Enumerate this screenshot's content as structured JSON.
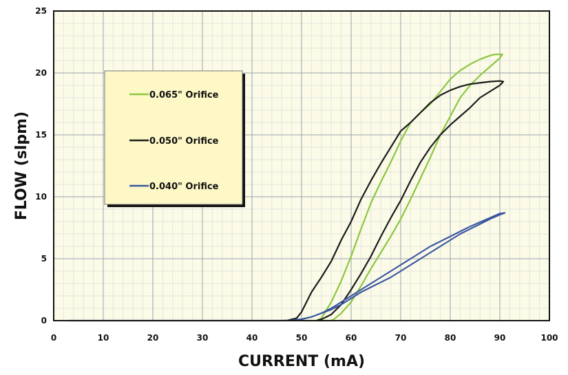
{
  "colors": {
    "plot_bg": "#fbfbe8",
    "minor_grid": "#e6e6de",
    "major_grid": "#9aa3ad",
    "legend_bg": "#fdf8c6",
    "legend_shadow": "#111111",
    "series_065": "#8cc63f",
    "series_050": "#1a1a1a",
    "series_040": "#3a56a0"
  },
  "chart_data": {
    "type": "line",
    "title": "",
    "xlabel": "CURRENT (mA)",
    "ylabel": "FLOW (slpm)",
    "xlim": [
      0,
      100
    ],
    "ylim": [
      0,
      25
    ],
    "xticks": [
      0,
      10,
      20,
      30,
      40,
      50,
      60,
      70,
      80,
      90,
      100
    ],
    "yticks": [
      0,
      5,
      10,
      15,
      20,
      25
    ],
    "grid": true,
    "legend_position": "top-left",
    "series": [
      {
        "name": "0.065\" Orifice",
        "color": "#8cc63f",
        "x": [
          50,
          53,
          54,
          56,
          58,
          60,
          62,
          64,
          66,
          68,
          70,
          72,
          74,
          76,
          78,
          80,
          82,
          84,
          86,
          88,
          89,
          90.5,
          90,
          88,
          86,
          84,
          82,
          80,
          78,
          76,
          74,
          72,
          70,
          68,
          66,
          64,
          62,
          60,
          58,
          56.5,
          56,
          52
        ],
        "y": [
          0,
          0,
          0.2,
          1.5,
          3.2,
          5.2,
          7.4,
          9.5,
          11.2,
          12.8,
          14.5,
          16.0,
          16.8,
          17.5,
          18.5,
          19.5,
          20.2,
          20.7,
          21.1,
          21.4,
          21.5,
          21.5,
          21.2,
          20.5,
          19.8,
          19.0,
          18.0,
          16.5,
          15.0,
          13.2,
          11.5,
          9.8,
          8.2,
          6.8,
          5.5,
          4.2,
          2.8,
          1.5,
          0.6,
          0.1,
          0,
          0
        ]
      },
      {
        "name": "0.050\" Orifice",
        "color": "#1a1a1a",
        "x": [
          47,
          48,
          49,
          50,
          52,
          54,
          56,
          58,
          60,
          62,
          64,
          66,
          68,
          70,
          72,
          74,
          76,
          78,
          80,
          82,
          84,
          86,
          88,
          90,
          90.7,
          90,
          88,
          86,
          84,
          82,
          80,
          78,
          76,
          74,
          72,
          70,
          68,
          66,
          64,
          62,
          60,
          58,
          56,
          54,
          53
        ],
        "y": [
          0,
          0.1,
          0.2,
          0.7,
          2.3,
          3.5,
          4.8,
          6.5,
          8.0,
          9.8,
          11.3,
          12.7,
          14.0,
          15.3,
          16.0,
          16.8,
          17.6,
          18.2,
          18.6,
          18.9,
          19.1,
          19.2,
          19.3,
          19.35,
          19.3,
          19.0,
          18.5,
          18.0,
          17.2,
          16.5,
          15.8,
          15.0,
          14.0,
          12.8,
          11.3,
          9.7,
          8.3,
          6.8,
          5.2,
          3.8,
          2.5,
          1.3,
          0.5,
          0.1,
          0
        ]
      },
      {
        "name": "0.040\" Orifice",
        "color": "#3a56a0",
        "x": [
          3,
          10,
          20,
          30,
          40,
          45,
          48,
          50,
          52,
          54,
          56,
          58,
          60,
          62,
          64,
          66,
          68,
          70,
          72,
          74,
          76,
          78,
          80,
          82,
          84,
          86,
          88,
          90,
          91,
          90,
          88,
          86,
          84,
          82,
          80,
          78,
          76,
          74,
          72,
          70,
          68,
          66,
          64,
          62,
          60,
          58,
          56,
          54,
          52,
          50,
          48,
          46,
          44
        ],
        "y": [
          0,
          0,
          0,
          0,
          0,
          0,
          0.02,
          0.12,
          0.3,
          0.6,
          0.9,
          1.3,
          1.8,
          2.3,
          2.7,
          3.1,
          3.5,
          4.0,
          4.5,
          5.0,
          5.5,
          6.0,
          6.5,
          7.0,
          7.4,
          7.8,
          8.2,
          8.55,
          8.7,
          8.65,
          8.3,
          7.95,
          7.6,
          7.2,
          6.8,
          6.4,
          6.0,
          5.5,
          5.0,
          4.5,
          4.0,
          3.5,
          3.0,
          2.5,
          2.0,
          1.5,
          1.0,
          0.6,
          0.3,
          0.1,
          0.02,
          0,
          0
        ]
      }
    ]
  }
}
